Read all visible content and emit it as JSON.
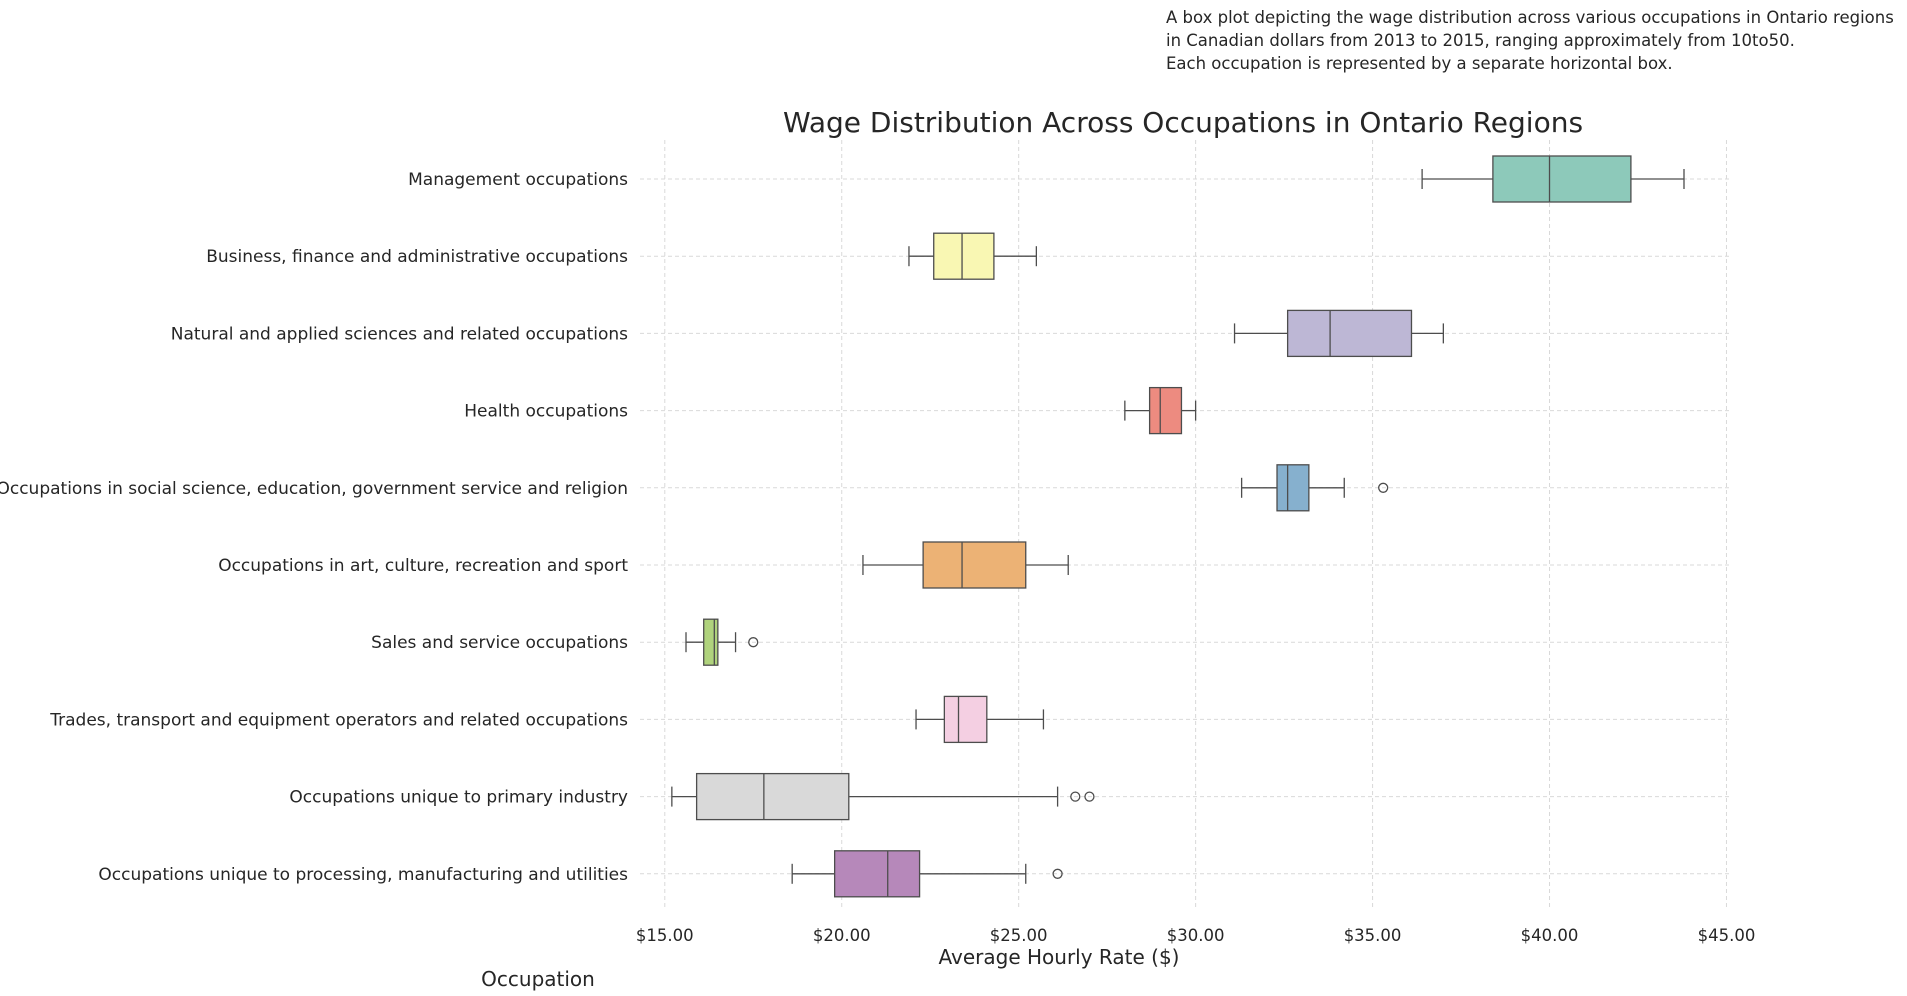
{
  "annotation": {
    "line1": "A box plot depicting the wage distribution across various occupations in Ontario regions",
    "line2": "in Canadian dollars from 2013 to 2015, ranging approximately from 10to50.",
    "line3": "Each occupation is represented by a separate horizontal box."
  },
  "chart_data": {
    "type": "boxplot",
    "orientation": "horizontal",
    "title": "Wage Distribution Across Occupations in Ontario Regions",
    "xlabel": "Average Hourly Rate ($)",
    "ylabel": "Occupation",
    "xlim": [
      14.3,
      45.1
    ],
    "xticks": [
      15,
      20,
      25,
      30,
      35,
      40,
      45
    ],
    "xtick_labels": [
      "$15.00",
      "$20.00",
      "$25.00",
      "$30.00",
      "$35.00",
      "$40.00",
      "$45.00"
    ],
    "grid": true,
    "categories": [
      "Management occupations",
      "Business, finance and administrative occupations",
      "Natural and applied sciences and related occupations",
      "Health occupations",
      "Occupations in social science, education, government service and religion",
      "Occupations in art, culture, recreation and sport",
      "Sales and service occupations",
      "Trades, transport and equipment operators and related occupations",
      "Occupations unique to primary industry",
      "Occupations unique to processing, manufacturing and utilities"
    ],
    "boxes": [
      {
        "whislo": 36.4,
        "q1": 38.4,
        "med": 40.0,
        "q3": 42.3,
        "whishi": 43.8,
        "fliers": [],
        "color": "#8dc9ba"
      },
      {
        "whislo": 21.9,
        "q1": 22.6,
        "med": 23.4,
        "q3": 24.3,
        "whishi": 25.5,
        "fliers": [],
        "color": "#f9f7b3"
      },
      {
        "whislo": 31.1,
        "q1": 32.6,
        "med": 33.8,
        "q3": 36.1,
        "whishi": 37.0,
        "fliers": [],
        "color": "#bdb7d5"
      },
      {
        "whislo": 28.0,
        "q1": 28.7,
        "med": 29.0,
        "q3": 29.6,
        "whishi": 30.0,
        "fliers": [],
        "color": "#ed8b80"
      },
      {
        "whislo": 31.3,
        "q1": 32.3,
        "med": 32.6,
        "q3": 33.2,
        "whishi": 34.2,
        "fliers": [
          35.3
        ],
        "color": "#86b0ce"
      },
      {
        "whislo": 20.6,
        "q1": 22.3,
        "med": 23.4,
        "q3": 25.2,
        "whishi": 26.4,
        "fliers": [],
        "color": "#ecb275"
      },
      {
        "whislo": 15.6,
        "q1": 16.1,
        "med": 16.4,
        "q3": 16.5,
        "whishi": 17.0,
        "fliers": [
          17.5
        ],
        "color": "#b0d37d"
      },
      {
        "whislo": 22.1,
        "q1": 22.9,
        "med": 23.3,
        "q3": 24.1,
        "whishi": 25.7,
        "fliers": [],
        "color": "#f4cfe2"
      },
      {
        "whislo": 15.2,
        "q1": 15.9,
        "med": 17.8,
        "q3": 20.2,
        "whishi": 26.1,
        "fliers": [
          26.6,
          27.0
        ],
        "color": "#d9d9d9"
      },
      {
        "whislo": 18.6,
        "q1": 19.8,
        "med": 21.3,
        "q3": 22.2,
        "whishi": 25.2,
        "fliers": [
          26.1
        ],
        "color": "#b688ba"
      }
    ]
  }
}
